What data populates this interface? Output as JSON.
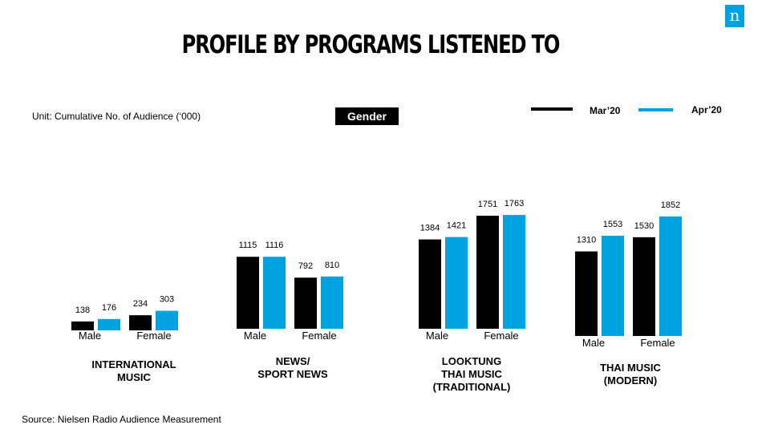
{
  "logo": "n",
  "title": "PROFILE BY PROGRAMS LISTENED TO",
  "unit_note": "Unit: Cumulative  No. of Audience (‘000)",
  "gender_label": "Gender",
  "source": "Source: Nielsen Radio Audience Measurement",
  "colors": {
    "mar20": "#000000",
    "apr20": "#00a3e0"
  },
  "chart_data": {
    "type": "bar",
    "series": [
      {
        "name": "Mar’20",
        "color": "#000000"
      },
      {
        "name": "Apr’20",
        "color": "#00a3e0"
      }
    ],
    "groups": [
      {
        "label": [
          "INTERNATIONAL",
          "MUSIC"
        ],
        "categories": [
          "Male",
          "Female"
        ],
        "values": {
          "Mar’20": [
            138,
            234
          ],
          "Apr’20": [
            176,
            303
          ]
        }
      },
      {
        "label": [
          "NEWS/",
          "SPORT NEWS"
        ],
        "categories": [
          "Male",
          "Female"
        ],
        "values": {
          "Mar’20": [
            1115,
            792
          ],
          "Apr’20": [
            1116,
            810
          ]
        }
      },
      {
        "label": [
          "LOOKTUNG",
          "THAI MUSIC",
          "(TRADITIONAL)"
        ],
        "categories": [
          "Male",
          "Female"
        ],
        "values": {
          "Mar’20": [
            1384,
            1751
          ],
          "Apr’20": [
            1421,
            1763
          ]
        }
      },
      {
        "label": [
          "THAI MUSIC",
          "(MODERN)"
        ],
        "categories": [
          "Male",
          "Female"
        ],
        "values": {
          "Mar’20": [
            1310,
            1530
          ],
          "Apr’20": [
            1553,
            1852
          ]
        }
      }
    ]
  }
}
